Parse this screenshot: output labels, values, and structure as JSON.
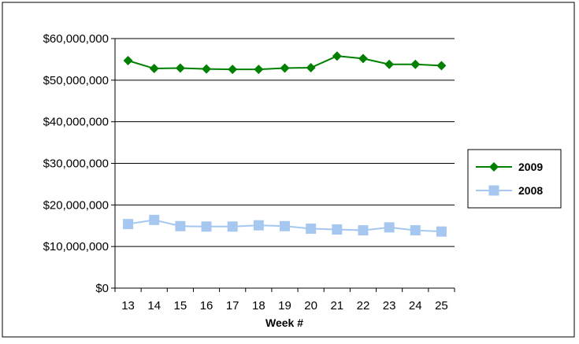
{
  "chart_data": {
    "type": "line",
    "title": "",
    "xlabel": "Week #",
    "ylabel": "",
    "x": [
      13,
      14,
      15,
      16,
      17,
      18,
      19,
      20,
      21,
      22,
      23,
      24,
      25
    ],
    "ylim": [
      0,
      60000000
    ],
    "yticks": [
      0,
      10000000,
      20000000,
      30000000,
      40000000,
      50000000,
      60000000
    ],
    "ytick_labels": [
      "$0",
      "$10,000,000",
      "$20,000,000",
      "$30,000,000",
      "$40,000,000",
      "$50,000,000",
      "$60,000,000"
    ],
    "grid": "horizontal",
    "legend": "right",
    "series": [
      {
        "name": "2009",
        "color": "#008000",
        "marker": "diamond",
        "values": [
          54700000,
          52800000,
          52900000,
          52700000,
          52600000,
          52600000,
          52900000,
          53000000,
          55800000,
          55200000,
          53800000,
          53800000,
          53500000
        ]
      },
      {
        "name": "2008",
        "color": "#a6c8f0",
        "marker": "square",
        "values": [
          15400000,
          16400000,
          14900000,
          14800000,
          14800000,
          15100000,
          14900000,
          14300000,
          14100000,
          13900000,
          14600000,
          13900000,
          13600000
        ]
      }
    ]
  }
}
